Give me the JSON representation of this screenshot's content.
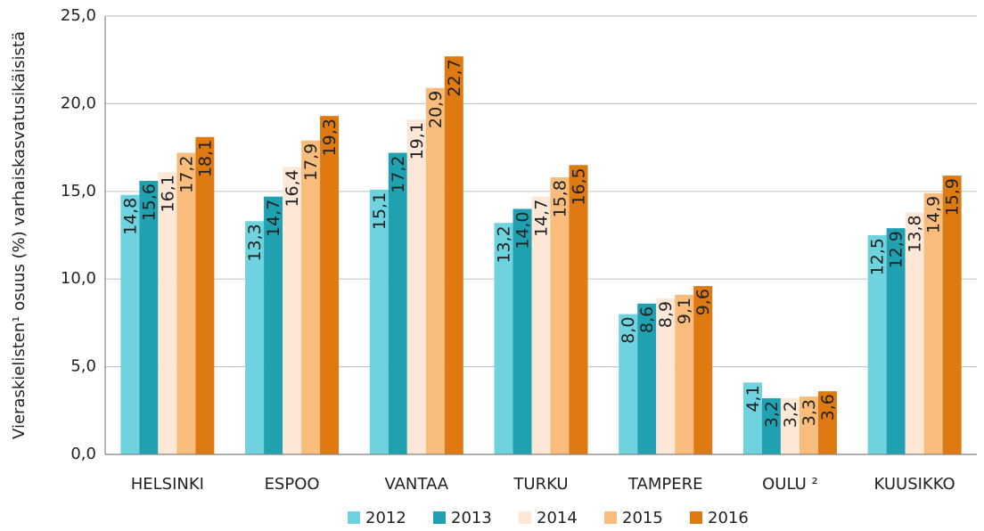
{
  "chart_data": {
    "type": "bar",
    "y_label": "Vieraskielisten¹ osuus (%) varhaiskasvatusikäisistä",
    "categories": [
      "HELSINKI",
      "ESPOO",
      "VANTAA",
      "TURKU",
      "TAMPERE",
      "OULU ²",
      "KUUSIKKO"
    ],
    "series": [
      {
        "name": "2012",
        "color": "#6fd2df",
        "values": [
          14.8,
          13.3,
          15.1,
          13.2,
          8.0,
          4.1,
          12.5
        ],
        "value_labels": [
          "14,8",
          "13,3",
          "15,1",
          "13,2",
          "8,0",
          "4,1",
          "12,5"
        ]
      },
      {
        "name": "2013",
        "color": "#20a1b2",
        "values": [
          15.6,
          14.7,
          17.2,
          14.0,
          8.6,
          3.2,
          12.9
        ],
        "value_labels": [
          "15,6",
          "14,7",
          "17,2",
          "14,0",
          "8,6",
          "3,2",
          "12,9"
        ]
      },
      {
        "name": "2014",
        "color": "#fde8d8",
        "values": [
          16.1,
          16.4,
          19.1,
          14.7,
          8.9,
          3.2,
          13.8
        ],
        "value_labels": [
          "16,1",
          "16,4",
          "19,1",
          "14,7",
          "8,9",
          "3,2",
          "13,8"
        ]
      },
      {
        "name": "2015",
        "color": "#f8bd7c",
        "values": [
          17.2,
          17.9,
          20.9,
          15.8,
          9.1,
          3.3,
          14.9
        ],
        "value_labels": [
          "17,2",
          "17,9",
          "20,9",
          "15,8",
          "9,1",
          "3,3",
          "14,9"
        ]
      },
      {
        "name": "2016",
        "color": "#df7a12",
        "values": [
          18.1,
          19.3,
          22.7,
          16.5,
          9.6,
          3.6,
          15.9
        ],
        "value_labels": [
          "18,1",
          "19,3",
          "22,7",
          "16,5",
          "9,6",
          "3,6",
          "15,9"
        ]
      }
    ],
    "ylim": [
      0,
      25
    ],
    "yticks": [
      {
        "value": 0,
        "label": "0,0"
      },
      {
        "value": 5,
        "label": "5,0"
      },
      {
        "value": 10,
        "label": "10,0"
      },
      {
        "value": 15,
        "label": "15,0"
      },
      {
        "value": 20,
        "label": "20,0"
      },
      {
        "value": 25,
        "label": "25,0"
      }
    ],
    "grid": true,
    "legend": "bottom"
  }
}
